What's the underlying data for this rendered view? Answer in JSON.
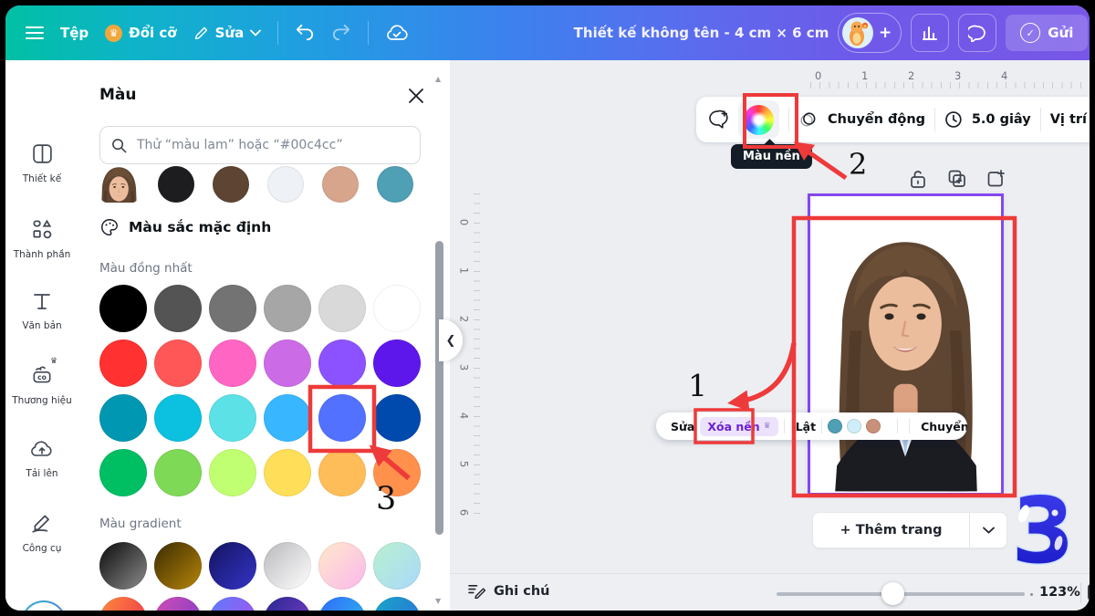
{
  "topbar": {
    "menu": {
      "file": "Tệp",
      "resize": "Đổi cỡ",
      "edit": "Sửa"
    },
    "title": "Thiết kế không tên - 4 cm × 6 cm",
    "send_label": "Gửi"
  },
  "sidebar": {
    "items": [
      {
        "id": "design",
        "label": "Thiết kế"
      },
      {
        "id": "elements",
        "label": "Thành phần"
      },
      {
        "id": "text",
        "label": "Văn bản"
      },
      {
        "id": "brand",
        "label": "Thương hiệu"
      },
      {
        "id": "uploads",
        "label": "Tải lên"
      },
      {
        "id": "tools",
        "label": "Công cụ"
      }
    ]
  },
  "color_panel": {
    "title": "Màu",
    "search_placeholder": "Thử “màu lam” hoặc “#00c4cc”",
    "default_section": "Màu sắc mặc định",
    "solid_label": "Màu đồng nhất",
    "gradient_label": "Màu gradient",
    "photo_colors": [
      "#1d1d1f",
      "#5d4433",
      "#eef1f5",
      "#d6a58c",
      "#4f9fb5"
    ],
    "solid_colors": [
      "#000000",
      "#545454",
      "#737373",
      "#a6a6a6",
      "#d9d9d9",
      "#ffffff",
      "#ff3131",
      "#ff5757",
      "#ff66c4",
      "#cb6ce6",
      "#8c52ff",
      "#5e17eb",
      "#0097b2",
      "#0cc0df",
      "#5ce1e6",
      "#38b6ff",
      "#5271ff",
      "#004aad",
      "#00bf63",
      "#7ed957",
      "#c1ff72",
      "#ffde59",
      "#ffbd59",
      "#ff914d"
    ],
    "highlighted_color": "#5271ff",
    "gradients": [
      "linear-gradient(135deg,#0b0b0b,#8c8c8c)",
      "linear-gradient(135deg,#3a2b00,#b8860b)",
      "linear-gradient(135deg,#13135f,#3434c8)",
      "linear-gradient(135deg,#b9b9bd,#ffffff)",
      "linear-gradient(135deg,#ffe9c9,#fbb8ec)",
      "linear-gradient(135deg,#b9f0cf,#a9d9fb)"
    ],
    "gradients_row2": [
      "linear-gradient(120deg,#ff8a3c,#ea2e4e)",
      "linear-gradient(120deg,#d24db4,#7a3cc9)",
      "linear-gradient(120deg,#5a7dff,#b04de8)",
      "linear-gradient(120deg,#28288f,#7a3cc9)",
      "linear-gradient(120deg,#2f6bff,#2fb8e8)",
      "linear-gradient(120deg,#17a8c9,#2f6bd8)"
    ]
  },
  "canvas": {
    "ruler_h": [
      "0",
      "1",
      "2",
      "3",
      "4"
    ],
    "ruler_v": [
      "0",
      "1",
      "2",
      "3",
      "4",
      "5",
      "6"
    ],
    "context_toolbar": {
      "animate": "Chuyển động",
      "duration": "5.0 giây",
      "position": "Vị trí"
    },
    "tooltip": "Màu nền",
    "floating_toolbar": {
      "edit": "Sửa",
      "remove_bg": "Xóa nền",
      "flip": "Lật",
      "animate": "Chuyển động",
      "colors": [
        "#4f9fb5",
        "#cfeef8",
        "#c99179"
      ]
    },
    "add_page": "+ Thêm trang",
    "notes": "Ghi chú",
    "zoom": "123%"
  },
  "annotations": {
    "step1": "1",
    "step2": "2",
    "step3": "3",
    "big": "3",
    "red": "#ee3a3a",
    "selection_purple": "#8447f0"
  }
}
